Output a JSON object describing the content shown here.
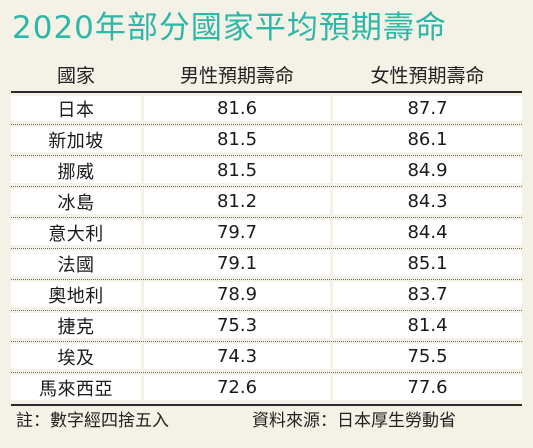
{
  "title": "2020年部分國家平均預期壽命",
  "chart_data": {
    "type": "table",
    "columns": [
      "國家",
      "男性預期壽命",
      "女性預期壽命"
    ],
    "rows": [
      {
        "country": "日本",
        "male": "81.6",
        "female": "87.7"
      },
      {
        "country": "新加坡",
        "male": "81.5",
        "female": "86.1"
      },
      {
        "country": "挪威",
        "male": "81.5",
        "female": "84.9"
      },
      {
        "country": "冰島",
        "male": "81.2",
        "female": "84.3"
      },
      {
        "country": "意大利",
        "male": "79.7",
        "female": "84.4"
      },
      {
        "country": "法國",
        "male": "79.1",
        "female": "85.1"
      },
      {
        "country": "奧地利",
        "male": "78.9",
        "female": "83.7"
      },
      {
        "country": "捷克",
        "male": "75.3",
        "female": "81.4"
      },
      {
        "country": "埃及",
        "male": "74.3",
        "female": "75.5"
      },
      {
        "country": "馬來西亞",
        "male": "72.6",
        "female": "77.6"
      }
    ]
  },
  "footer": {
    "note": "註：數字經四捨五入",
    "source": "資料來源：日本厚生勞動省"
  },
  "colors": {
    "title": "#2eb7a6",
    "background": "#f4f1e6",
    "cell": "#ffffff"
  }
}
